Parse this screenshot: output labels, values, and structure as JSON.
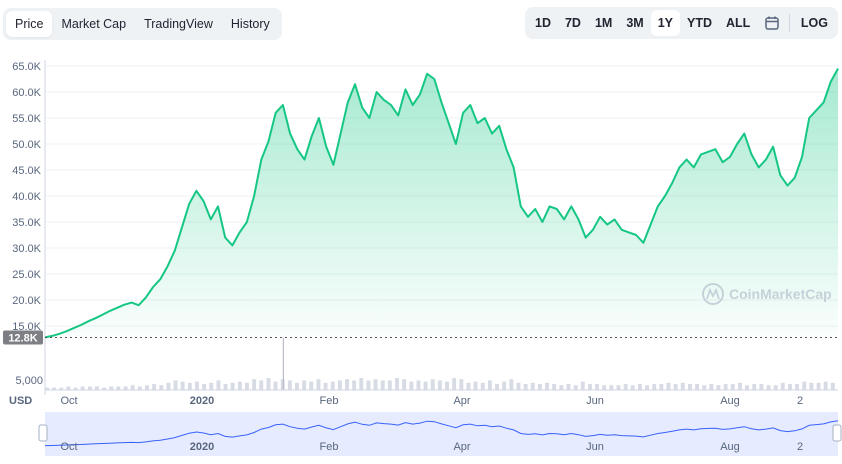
{
  "tabs": [
    "Price",
    "Market Cap",
    "TradingView",
    "History"
  ],
  "active_tab": "Price",
  "ranges": [
    "1D",
    "7D",
    "1M",
    "3M",
    "1Y",
    "YTD",
    "ALL"
  ],
  "active_range": "1Y",
  "log_label": "LOG",
  "calendar_icon": "calendar-icon",
  "watermark": "CoinMarketCap",
  "colors": {
    "line": "#16c784",
    "fill_top": "#16c784",
    "navigator": "#3861fb",
    "navigator_fill": "#e6ebff"
  },
  "chart_data": {
    "type": "area",
    "y_ticks": [
      "65.0K",
      "60.0K",
      "55.0K",
      "50.0K",
      "45.0K",
      "40.0K",
      "35.0K",
      "30.0K",
      "25.0K",
      "20.0K",
      "15.0K"
    ],
    "ylim": [
      12000,
      67500
    ],
    "current_price_label": "12.8K",
    "volume_tick": "5,000",
    "volume_axis_label": "USD",
    "x_ticks": [
      "Oct",
      "2020",
      "Feb",
      "Apr",
      "Jun",
      "Aug",
      "2"
    ],
    "grid": true,
    "series": [
      {
        "values": [
          12800,
          13100,
          13500,
          14000,
          14600,
          15200,
          15900,
          16500,
          17200,
          17900,
          18500,
          19100,
          19500,
          19000,
          20500,
          22500,
          24000,
          26500,
          29500,
          34000,
          38500,
          41000,
          39000,
          35500,
          38000,
          32000,
          30500,
          33000,
          35000,
          40000,
          47000,
          50500,
          56000,
          57500,
          52000,
          49000,
          47000,
          51500,
          55000,
          49500,
          46000,
          52000,
          58000,
          61500,
          57000,
          55000,
          60000,
          58500,
          57500,
          55500,
          60500,
          57500,
          59500,
          63500,
          62500,
          58000,
          54000,
          50000,
          56000,
          57500,
          54000,
          55000,
          52000,
          53500,
          49000,
          45500,
          38000,
          36000,
          37500,
          35000,
          38000,
          37500,
          35500,
          38000,
          35500,
          32000,
          33500,
          36000,
          34500,
          35500,
          33500,
          33000,
          32500,
          31000,
          34500,
          38000,
          40000,
          42500,
          45500,
          47000,
          45500,
          48000,
          48500,
          49000,
          46500,
          47500,
          50000,
          52000,
          48000,
          45500,
          47000,
          49500,
          44000,
          42000,
          43500,
          47500,
          55000,
          56500,
          58000,
          62000,
          64500
        ]
      }
    ],
    "volume": [
      2,
      2,
      2,
      3,
      2,
      3,
      3,
      3,
      2,
      3,
      3,
      3,
      4,
      3,
      4,
      5,
      4,
      6,
      8,
      7,
      6,
      7,
      5,
      6,
      8,
      5,
      6,
      7,
      6,
      9,
      8,
      10,
      7,
      9,
      8,
      6,
      8,
      7,
      9,
      6,
      7,
      8,
      9,
      8,
      10,
      8,
      9,
      8,
      8,
      10,
      9,
      7,
      8,
      7,
      9,
      8,
      7,
      10,
      9,
      6,
      7,
      6,
      8,
      5,
      7,
      9,
      6,
      5,
      6,
      5,
      6,
      5,
      4,
      5,
      4,
      7,
      5,
      5,
      4,
      4,
      4,
      5,
      4,
      5,
      4,
      5,
      5,
      6,
      5,
      6,
      5,
      5,
      4,
      5,
      4,
      5,
      5,
      6,
      4,
      5,
      5,
      4,
      4,
      6,
      5,
      5,
      7,
      6,
      6,
      7,
      6
    ],
    "volume_spike_index": 33
  }
}
